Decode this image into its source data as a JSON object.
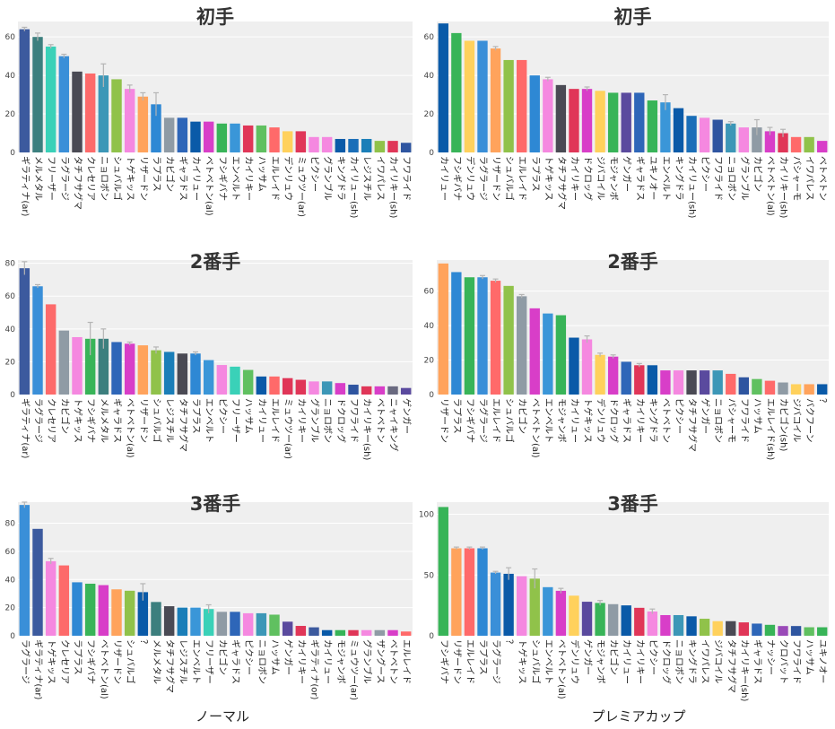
{
  "chart_data": [
    {
      "type": "bar",
      "title": "初手",
      "ylim": [
        0,
        68
      ],
      "yticks": [
        0,
        20,
        40,
        60
      ],
      "categories": [
        "ギラティナ(ar)",
        "メルメタル",
        "フリーザー",
        "ラグラージ",
        "タチフサグマ",
        "クレセリア",
        "ニョロボン",
        "シュバルゴ",
        "トゲキッス",
        "リザードン",
        "ラプラス",
        "カビゴン",
        "ギャラドス",
        "カイリュー",
        "ベトベトン(al)",
        "フシギバナ",
        "エンベルト",
        "カイリキー",
        "ハッサム",
        "エルレイド",
        "デンリュウ",
        "ミュウツー(ar)",
        "ピクシー",
        "グランブル",
        "キングドラ",
        "カイリュー(sh)",
        "レジスチル",
        "イワパレス",
        "カイリキー(sh)",
        "フワライド"
      ],
      "values": [
        64,
        60,
        55,
        50,
        42,
        41,
        40,
        38,
        33,
        29,
        25,
        18,
        18,
        16,
        16,
        15,
        15,
        14,
        14,
        13,
        11,
        11,
        8,
        8,
        7,
        7,
        7,
        6,
        6,
        5
      ],
      "errors": [
        1,
        2,
        1,
        1,
        0,
        0,
        6,
        0,
        2,
        2,
        6,
        0,
        0,
        0,
        0,
        0,
        0,
        0,
        0,
        0,
        0,
        0,
        0,
        0,
        0,
        0,
        0,
        0,
        0,
        0
      ],
      "colors": [
        "#3c5a9e",
        "#3c7f7e",
        "#3ad1b8",
        "#3a8fd8",
        "#4a4a54",
        "#fd6a6a",
        "#3c97b7",
        "#90c24a",
        "#f588e0",
        "#ffa35c",
        "#2e88d4",
        "#8f9ba5",
        "#2e66b8",
        "#0a5aa8",
        "#d83ec8",
        "#38b458",
        "#3a96d8",
        "#e03658",
        "#60c060",
        "#ff6a6a",
        "#ffd15c",
        "#e03658",
        "#f588e0",
        "#f588e0",
        "#0a5aa8",
        "#1a6eb8",
        "#1a7eb8",
        "#90c24a",
        "#e03658",
        "#2e55a0"
      ]
    },
    {
      "type": "bar",
      "title": "初手",
      "ylim": [
        0,
        68
      ],
      "yticks": [
        0,
        20,
        40,
        60
      ],
      "categories": [
        "カイリュー",
        "フシギバナ",
        "デンリュウ",
        "ラグラージ",
        "リザードン",
        "シュバルゴ",
        "エルレイド",
        "ラプラス",
        "トゲキッス",
        "タチフサグマ",
        "カイリキー",
        "ドクロッグ",
        "ジバコイル",
        "モジャンボ",
        "ゲンガー",
        "ギャラドス",
        "ユキノオー",
        "エンベルト",
        "キングドラ",
        "カイリュー(sh)",
        "ピクシー",
        "フワライド",
        "ニョロボン",
        "グランブル",
        "カビゴン",
        "ベトベトン(al)",
        "カイリキー(sh)",
        "バシャーモ",
        "イワパレス",
        "ベトベトン"
      ],
      "values": [
        67,
        62,
        58,
        58,
        54,
        48,
        48,
        40,
        38,
        35,
        33,
        33,
        32,
        31,
        31,
        31,
        27,
        26,
        23,
        19,
        18,
        17,
        15,
        13,
        13,
        11,
        10,
        8,
        8,
        6
      ],
      "errors": [
        0,
        0,
        0,
        0,
        1,
        0,
        0,
        0,
        1,
        0,
        0,
        1,
        0,
        0,
        0,
        0,
        0,
        4,
        0,
        0,
        0,
        0,
        1,
        0,
        4,
        2,
        2,
        0,
        0,
        0
      ],
      "colors": [
        "#0a5aa8",
        "#38b458",
        "#ffd15c",
        "#3a8fd8",
        "#ffa35c",
        "#90c24a",
        "#ff6a6a",
        "#2e88d4",
        "#f588e0",
        "#4a4a54",
        "#e03658",
        "#d83ec8",
        "#ffd15c",
        "#38b458",
        "#5a4a9e",
        "#2e66b8",
        "#38b458",
        "#3a96d8",
        "#0a5aa8",
        "#1a6eb8",
        "#f588e0",
        "#2e55a0",
        "#3c97b7",
        "#f588e0",
        "#8f9ba5",
        "#d83ec8",
        "#e03658",
        "#ff6a6a",
        "#90c24a",
        "#d83ec8"
      ]
    },
    {
      "type": "bar",
      "title": "2番手",
      "ylim": [
        0,
        82
      ],
      "yticks": [
        0,
        20,
        40,
        60,
        80
      ],
      "categories": [
        "ギラティナ(ar)",
        "ラグラージ",
        "クレセリア",
        "カビゴン",
        "トゲキッス",
        "フシギバナ",
        "メルメタル",
        "ギャラドス",
        "ベトベトン(al)",
        "リザードン",
        "シュバルゴ",
        "レジスチル",
        "タチフサグマ",
        "ラプラス",
        "エンベルト",
        "ピクシー",
        "フリーザー",
        "ハッサム",
        "カイリュー",
        "エルレイド",
        "ミュウツー(ar)",
        "カイリキー",
        "グランブル",
        "ニョロボン",
        "ドクロッグ",
        "フワライド",
        "カイリキー(sh)",
        "ベトベトン",
        "ニャイキング",
        "ゲンガー"
      ],
      "values": [
        77,
        66,
        55,
        39,
        35,
        34,
        34,
        32,
        31,
        30,
        27,
        26,
        25,
        25,
        21,
        18,
        17,
        15,
        11,
        11,
        10,
        9,
        8,
        8,
        7,
        6,
        5,
        5,
        5,
        4
      ],
      "errors": [
        4,
        1,
        0,
        0,
        0,
        10,
        6,
        0,
        1,
        0,
        2,
        0,
        0,
        1,
        0,
        0,
        0,
        0,
        0,
        0,
        0,
        0,
        0,
        0,
        0,
        0,
        0,
        0,
        0,
        0
      ],
      "colors": [
        "#3c5a9e",
        "#3a8fd8",
        "#fd6a6a",
        "#8f9ba5",
        "#f588e0",
        "#38b458",
        "#3c7f7e",
        "#2e66b8",
        "#d83ec8",
        "#ffa35c",
        "#90c24a",
        "#1a7eb8",
        "#4a4a54",
        "#2e88d4",
        "#3a96d8",
        "#f588e0",
        "#3ad1b8",
        "#60c060",
        "#0a5aa8",
        "#ff6a6a",
        "#e03658",
        "#e03658",
        "#f588e0",
        "#3c97b7",
        "#d83ec8",
        "#2e55a0",
        "#e03658",
        "#d83ec8",
        "#6a6a80",
        "#5a4a9e"
      ]
    },
    {
      "type": "bar",
      "title": "2番手",
      "ylim": [
        0,
        78
      ],
      "yticks": [
        0,
        20,
        40,
        60
      ],
      "categories": [
        "リザードン",
        "ラプラス",
        "フシギバナ",
        "ラグラージ",
        "エルレイド",
        "シュバルゴ",
        "カビゴン",
        "ベトベトン(al)",
        "エンベルト",
        "モジャンボ",
        "カイリュー",
        "トゲキッス",
        "デンリュウ",
        "ドクロッグ",
        "ギャラドス",
        "カイリキー",
        "キングドラ",
        "ベトベトン",
        "ピクシー",
        "タチフサグマ",
        "ゲンガー",
        "ニョロボン",
        "バシャーモ",
        "フワライド",
        "ハッサム",
        "エルレイド(sh)",
        "カビゴン(sh)",
        "ジバコイル",
        "バクフーン",
        "？"
      ],
      "values": [
        76,
        71,
        68,
        68,
        66,
        63,
        57,
        50,
        47,
        46,
        33,
        32,
        23,
        22,
        19,
        17,
        17,
        14,
        14,
        14,
        14,
        14,
        12,
        10,
        9,
        8,
        7,
        6,
        6,
        6
      ],
      "errors": [
        0,
        0,
        0,
        1,
        1,
        0,
        1,
        0,
        0,
        0,
        0,
        2,
        1,
        1,
        0,
        1,
        0,
        0,
        0,
        0,
        0,
        0,
        0,
        0,
        0,
        0,
        0,
        0,
        0,
        0
      ],
      "colors": [
        "#ffa35c",
        "#2e88d4",
        "#38b458",
        "#3a8fd8",
        "#ff6a6a",
        "#90c24a",
        "#8f9ba5",
        "#d83ec8",
        "#3a96d8",
        "#38b458",
        "#0a5aa8",
        "#f588e0",
        "#ffd15c",
        "#d83ec8",
        "#2e66b8",
        "#e03658",
        "#0a5aa8",
        "#d83ec8",
        "#f588e0",
        "#4a4a54",
        "#5a4a9e",
        "#3c97b7",
        "#ff6a6a",
        "#2e55a0",
        "#60c060",
        "#ff6a6a",
        "#8f9ba5",
        "#ffd15c",
        "#ffa35c",
        "#0a5aa8"
      ]
    },
    {
      "type": "bar",
      "title": "3番手",
      "ylim": [
        0,
        95
      ],
      "yticks": [
        0,
        20,
        40,
        60,
        80
      ],
      "categories": [
        "ラグラージ",
        "ギラティナ(ar)",
        "トゲキッス",
        "クレセリア",
        "ラプラス",
        "フシギバナ",
        "ベトベトン(al)",
        "リザードン",
        "シュバルゴ",
        "？",
        "メルメタル",
        "タチフサグマ",
        "レジスチル",
        "エンベルト",
        "フリーザー",
        "カビゴン",
        "ギャラドス",
        "ピクシー",
        "ニョロボン",
        "ハッサム",
        "ゲンガー",
        "カイリキー",
        "ギラティナ(or)",
        "カイリュー",
        "モジャンボ",
        "ミュウツー(ar)",
        "グランブル",
        "ザングース",
        "ベトベトン",
        "エルレイド"
      ],
      "values": [
        93,
        76,
        53,
        50,
        38,
        37,
        36,
        33,
        32,
        31,
        24,
        21,
        20,
        20,
        19,
        17,
        17,
        16,
        16,
        15,
        10,
        7,
        6,
        4,
        4,
        4,
        4,
        4,
        4,
        3
      ],
      "errors": [
        2,
        0,
        2,
        0,
        0,
        0,
        0,
        0,
        0,
        6,
        0,
        0,
        0,
        0,
        3,
        0,
        0,
        0,
        0,
        0,
        0,
        0,
        0,
        0,
        0,
        0,
        0,
        0,
        0,
        0
      ],
      "colors": [
        "#3a8fd8",
        "#3c5a9e",
        "#f588e0",
        "#fd6a6a",
        "#2e88d4",
        "#38b458",
        "#d83ec8",
        "#ffa35c",
        "#90c24a",
        "#0a5aa8",
        "#3c7f7e",
        "#4a4a54",
        "#1a7eb8",
        "#3a96d8",
        "#3ad1b8",
        "#8f9ba5",
        "#2e66b8",
        "#f588e0",
        "#3c97b7",
        "#60c060",
        "#5a4a9e",
        "#e03658",
        "#3c5a9e",
        "#0a5aa8",
        "#38b458",
        "#e03658",
        "#f588e0",
        "#8f9ba5",
        "#d83ec8",
        "#ff6a6a"
      ]
    },
    {
      "type": "bar",
      "title": "3番手",
      "ylim": [
        0,
        110
      ],
      "yticks": [
        0,
        50,
        100
      ],
      "categories": [
        "フシギバナ",
        "リザードン",
        "エルレイド",
        "ラプラス",
        "ラグラージ",
        "？",
        "トゲキッス",
        "シュバルゴ",
        "エンベルト",
        "ベトベトン(al)",
        "デンリュウ",
        "ゲンガー",
        "モジャンボ",
        "カビゴン",
        "カイリュー",
        "カイリキー",
        "ピクシー",
        "ドクロッグ",
        "ニョロボン",
        "キングドラ",
        "イワパレス",
        "ジバコイル",
        "タチフサグマ",
        "カイリキー(sh)",
        "ギャラドス",
        "ナッシー",
        "クロバット",
        "フワライド",
        "ハッサム",
        "ユキノオー"
      ],
      "values": [
        106,
        72,
        72,
        72,
        52,
        51,
        49,
        47,
        40,
        37,
        33,
        28,
        27,
        26,
        25,
        23,
        20,
        17,
        17,
        16,
        14,
        12,
        12,
        11,
        10,
        9,
        8,
        8,
        7,
        7
      ],
      "errors": [
        0,
        1,
        1,
        1,
        1,
        5,
        0,
        8,
        0,
        2,
        0,
        0,
        2,
        0,
        0,
        0,
        2,
        0,
        0,
        0,
        0,
        0,
        0,
        0,
        0,
        0,
        0,
        0,
        0,
        0
      ],
      "colors": [
        "#38b458",
        "#ffa35c",
        "#ff6a6a",
        "#2e88d4",
        "#3a8fd8",
        "#0a5aa8",
        "#f588e0",
        "#90c24a",
        "#3a96d8",
        "#d83ec8",
        "#ffd15c",
        "#5a4a9e",
        "#38b458",
        "#8f9ba5",
        "#0a5aa8",
        "#e03658",
        "#f588e0",
        "#d83ec8",
        "#3c97b7",
        "#0a5aa8",
        "#90c24a",
        "#ffd15c",
        "#4a4a54",
        "#e03658",
        "#2e66b8",
        "#38b458",
        "#9a4ab8",
        "#2e55a0",
        "#60c060",
        "#38b458"
      ]
    }
  ],
  "footer": {
    "left_label": "ノーマル",
    "right_label": "プレミアカップ"
  }
}
